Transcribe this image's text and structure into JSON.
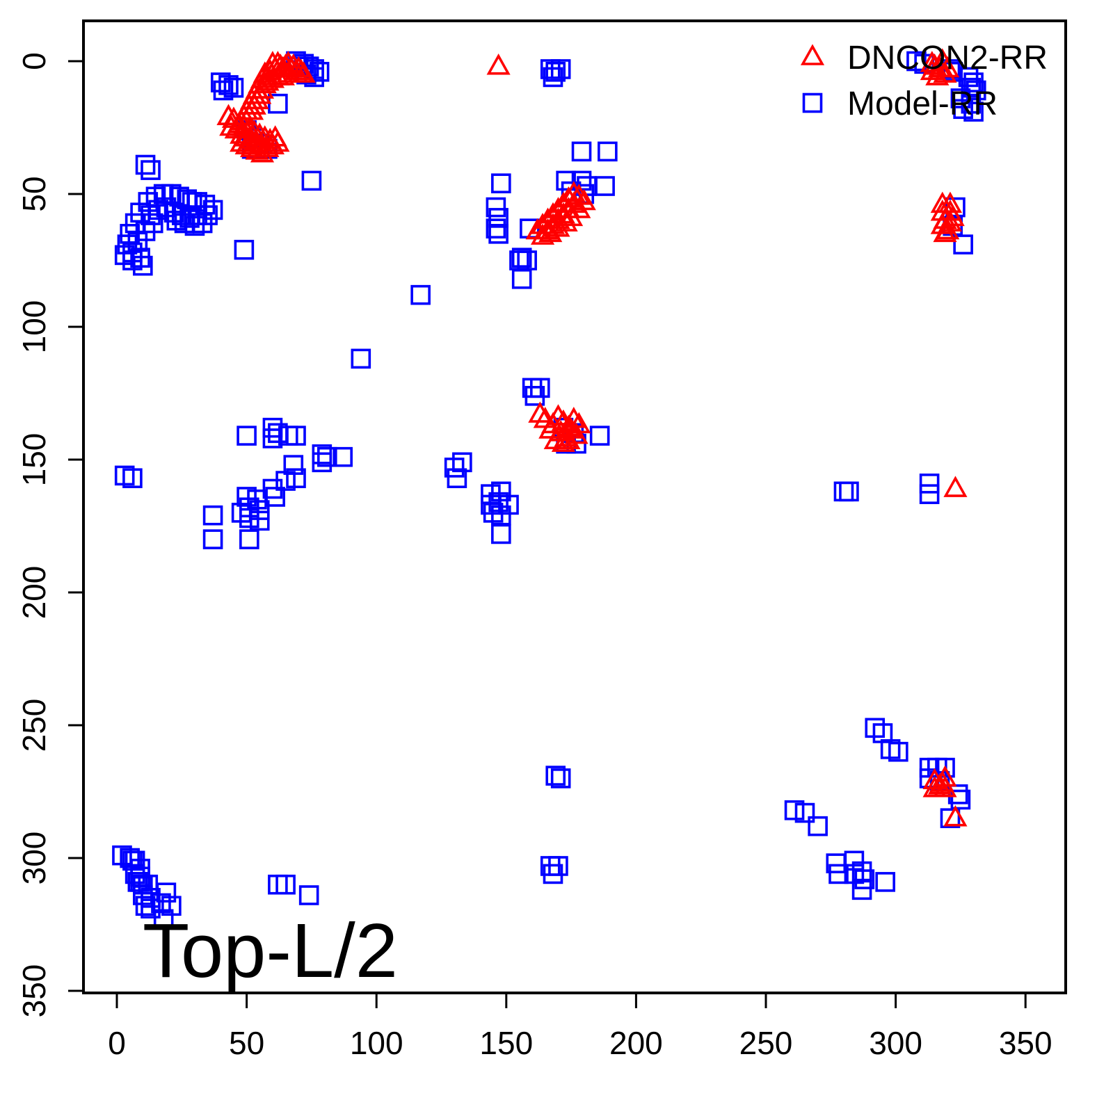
{
  "chart_data": {
    "type": "scatter",
    "annotation": "Top-L/2",
    "grid": false,
    "x_axis": {
      "ticks": [
        0,
        50,
        100,
        150,
        200,
        250,
        300,
        350
      ],
      "range": [
        -14,
        366
      ]
    },
    "y_axis": {
      "ticks": [
        0,
        50,
        100,
        150,
        200,
        250,
        300,
        350
      ],
      "range": [
        -15,
        364
      ],
      "reversed": true
    },
    "legend": {
      "position": "top-right",
      "items": [
        {
          "label": "DNCON2-RR",
          "marker": "triangle",
          "color": "#FF0000"
        },
        {
          "label": "Model-RR",
          "marker": "square",
          "color": "#0000FF"
        }
      ]
    },
    "series": [
      {
        "name": "DNCON2-RR",
        "marker": "triangle",
        "color": "#FF0000",
        "points": [
          [
            60,
            1
          ],
          [
            62,
            1
          ],
          [
            63,
            2
          ],
          [
            65,
            2
          ],
          [
            66,
            1
          ],
          [
            67,
            3
          ],
          [
            68,
            2
          ],
          [
            69,
            4
          ],
          [
            64,
            3
          ],
          [
            61,
            3
          ],
          [
            59,
            4
          ],
          [
            58,
            6
          ],
          [
            57,
            5
          ],
          [
            56,
            7
          ],
          [
            71,
            4
          ],
          [
            72,
            5
          ],
          [
            70,
            3
          ],
          [
            66,
            5
          ],
          [
            64,
            6
          ],
          [
            62,
            6
          ],
          [
            60,
            7
          ],
          [
            55,
            9
          ],
          [
            54,
            11
          ],
          [
            53,
            13
          ],
          [
            52,
            15
          ],
          [
            51,
            17
          ],
          [
            50,
            19
          ],
          [
            56,
            11
          ],
          [
            55,
            13
          ],
          [
            54,
            15
          ],
          [
            53,
            17
          ],
          [
            52,
            19
          ],
          [
            57,
            9
          ],
          [
            58,
            8
          ],
          [
            49,
            21
          ],
          [
            48,
            23
          ],
          [
            45,
            22
          ],
          [
            47,
            24
          ],
          [
            49,
            25
          ],
          [
            51,
            26
          ],
          [
            53,
            27
          ],
          [
            55,
            28
          ],
          [
            57,
            29
          ],
          [
            59,
            30
          ],
          [
            61,
            29
          ],
          [
            46,
            26
          ],
          [
            48,
            28
          ],
          [
            50,
            29
          ],
          [
            52,
            30
          ],
          [
            54,
            31
          ],
          [
            56,
            32
          ],
          [
            58,
            33
          ],
          [
            50,
            32
          ],
          [
            52,
            33
          ],
          [
            54,
            34
          ],
          [
            56,
            35
          ],
          [
            48,
            31
          ],
          [
            44,
            25
          ],
          [
            43,
            21
          ],
          [
            60,
            32
          ],
          [
            62,
            31
          ],
          [
            147,
            2
          ],
          [
            162,
            64
          ],
          [
            164,
            62
          ],
          [
            166,
            60
          ],
          [
            168,
            58
          ],
          [
            170,
            56
          ],
          [
            172,
            54
          ],
          [
            174,
            52
          ],
          [
            176,
            50
          ],
          [
            178,
            51
          ],
          [
            180,
            53
          ],
          [
            170,
            60
          ],
          [
            172,
            58
          ],
          [
            174,
            56
          ],
          [
            176,
            54
          ],
          [
            178,
            56
          ],
          [
            168,
            62
          ],
          [
            166,
            64
          ],
          [
            170,
            63
          ],
          [
            173,
            61
          ],
          [
            175,
            59
          ],
          [
            164,
            66
          ],
          [
            167,
            65
          ],
          [
            163,
            133
          ],
          [
            165,
            135
          ],
          [
            168,
            137
          ],
          [
            170,
            134
          ],
          [
            172,
            136
          ],
          [
            174,
            138
          ],
          [
            176,
            135
          ],
          [
            178,
            137
          ],
          [
            171,
            140
          ],
          [
            173,
            142
          ],
          [
            175,
            139
          ],
          [
            177,
            141
          ],
          [
            169,
            143
          ],
          [
            172,
            144
          ],
          [
            167,
            139
          ],
          [
            174,
            143
          ],
          [
            318,
            54
          ],
          [
            321,
            54
          ],
          [
            318,
            57
          ],
          [
            321,
            57
          ],
          [
            319,
            60
          ],
          [
            321,
            61
          ],
          [
            318,
            62
          ],
          [
            320,
            64
          ],
          [
            319,
            65
          ],
          [
            322,
            59
          ],
          [
            315,
            271
          ],
          [
            319,
            270
          ],
          [
            317,
            273
          ],
          [
            315,
            274
          ],
          [
            319,
            274
          ],
          [
            318,
            272
          ],
          [
            323,
            285
          ],
          [
            323,
            161
          ],
          [
            314,
            1
          ],
          [
            318,
            0
          ],
          [
            317,
            3
          ],
          [
            314,
            4
          ],
          [
            320,
            3
          ],
          [
            316,
            6
          ],
          [
            319,
            5
          ],
          [
            315,
            2
          ]
        ]
      },
      {
        "name": "Model-RR",
        "marker": "square",
        "color": "#0000FF",
        "points": [
          [
            69,
            0
          ],
          [
            72,
            1
          ],
          [
            74,
            2
          ],
          [
            76,
            3
          ],
          [
            73,
            5
          ],
          [
            70,
            2
          ],
          [
            76,
            6
          ],
          [
            78,
            4
          ],
          [
            40,
            8
          ],
          [
            43,
            9
          ],
          [
            41,
            11
          ],
          [
            45,
            10
          ],
          [
            62,
            16
          ],
          [
            58,
            33
          ],
          [
            50,
            26
          ],
          [
            53,
            29
          ],
          [
            55,
            31
          ],
          [
            52,
            33
          ],
          [
            75,
            45
          ],
          [
            49,
            71
          ],
          [
            11,
            39
          ],
          [
            13,
            41
          ],
          [
            15,
            51
          ],
          [
            18,
            50
          ],
          [
            21,
            50
          ],
          [
            24,
            51
          ],
          [
            27,
            52
          ],
          [
            29,
            53
          ],
          [
            31,
            53
          ],
          [
            34,
            54
          ],
          [
            37,
            56
          ],
          [
            12,
            53
          ],
          [
            9,
            57
          ],
          [
            7,
            61
          ],
          [
            5,
            65
          ],
          [
            4,
            69
          ],
          [
            3,
            73
          ],
          [
            6,
            75
          ],
          [
            10,
            77
          ],
          [
            13,
            58
          ],
          [
            16,
            56
          ],
          [
            19,
            55
          ],
          [
            22,
            57
          ],
          [
            25,
            58
          ],
          [
            28,
            59
          ],
          [
            31,
            58
          ],
          [
            35,
            58
          ],
          [
            33,
            61
          ],
          [
            30,
            62
          ],
          [
            26,
            61
          ],
          [
            23,
            60
          ],
          [
            14,
            61
          ],
          [
            11,
            64
          ],
          [
            8,
            68
          ],
          [
            6,
            72
          ],
          [
            9,
            74
          ],
          [
            3,
            156
          ],
          [
            6,
            157
          ],
          [
            50,
            141
          ],
          [
            60,
            138
          ],
          [
            62,
            140
          ],
          [
            60,
            142
          ],
          [
            66,
            141
          ],
          [
            69,
            141
          ],
          [
            79,
            148
          ],
          [
            81,
            149
          ],
          [
            79,
            151
          ],
          [
            87,
            149
          ],
          [
            68,
            152
          ],
          [
            69,
            157
          ],
          [
            65,
            158
          ],
          [
            60,
            161
          ],
          [
            61,
            164
          ],
          [
            50,
            164
          ],
          [
            54,
            165
          ],
          [
            51,
            168
          ],
          [
            55,
            169
          ],
          [
            51,
            172
          ],
          [
            48,
            170
          ],
          [
            55,
            173
          ],
          [
            37,
            171
          ],
          [
            37,
            180
          ],
          [
            51,
            180
          ],
          [
            117,
            88
          ],
          [
            94,
            112
          ],
          [
            167,
            3
          ],
          [
            169,
            4
          ],
          [
            168,
            6
          ],
          [
            171,
            3
          ],
          [
            179,
            34
          ],
          [
            189,
            34
          ],
          [
            188,
            47
          ],
          [
            173,
            45
          ],
          [
            179,
            45
          ],
          [
            181,
            47
          ],
          [
            175,
            49
          ],
          [
            180,
            50
          ],
          [
            148,
            46
          ],
          [
            146,
            55
          ],
          [
            147,
            59
          ],
          [
            146,
            63
          ],
          [
            147,
            65
          ],
          [
            159,
            63
          ],
          [
            156,
            74
          ],
          [
            158,
            75
          ],
          [
            155,
            75
          ],
          [
            156,
            82
          ],
          [
            160,
            123
          ],
          [
            163,
            123
          ],
          [
            161,
            126
          ],
          [
            172,
            138
          ],
          [
            176,
            140
          ],
          [
            173,
            144
          ],
          [
            177,
            144
          ],
          [
            186,
            141
          ],
          [
            130,
            153
          ],
          [
            133,
            151
          ],
          [
            131,
            157
          ],
          [
            144,
            163
          ],
          [
            148,
            162
          ],
          [
            144,
            167
          ],
          [
            147,
            166
          ],
          [
            145,
            170
          ],
          [
            148,
            171
          ],
          [
            151,
            167
          ],
          [
            148,
            178
          ],
          [
            280,
            162
          ],
          [
            282,
            162
          ],
          [
            313,
            159
          ],
          [
            313,
            163
          ],
          [
            323,
            55
          ],
          [
            322,
            62
          ],
          [
            326,
            69
          ],
          [
            308,
            0
          ],
          [
            311,
            1
          ],
          [
            321,
            3
          ],
          [
            322,
            4
          ],
          [
            328,
            6
          ],
          [
            330,
            8
          ],
          [
            329,
            10
          ],
          [
            331,
            11
          ],
          [
            325,
            14
          ],
          [
            329,
            16
          ],
          [
            326,
            18
          ],
          [
            330,
            19
          ],
          [
            292,
            251
          ],
          [
            295,
            253
          ],
          [
            298,
            259
          ],
          [
            301,
            260
          ],
          [
            313,
            266
          ],
          [
            316,
            266
          ],
          [
            319,
            266
          ],
          [
            313,
            270
          ],
          [
            317,
            271
          ],
          [
            324,
            276
          ],
          [
            325,
            278
          ],
          [
            321,
            285
          ],
          [
            261,
            282
          ],
          [
            265,
            283
          ],
          [
            270,
            288
          ],
          [
            277,
            302
          ],
          [
            284,
            301
          ],
          [
            278,
            306
          ],
          [
            284,
            306
          ],
          [
            287,
            305
          ],
          [
            288,
            308
          ],
          [
            287,
            312
          ],
          [
            296,
            309
          ],
          [
            2,
            299
          ],
          [
            5,
            300
          ],
          [
            6,
            301
          ],
          [
            7,
            301
          ],
          [
            9,
            304
          ],
          [
            7,
            306
          ],
          [
            9,
            307
          ],
          [
            8,
            309
          ],
          [
            10,
            310
          ],
          [
            9,
            309
          ],
          [
            12,
            310
          ],
          [
            10,
            314
          ],
          [
            13,
            315
          ],
          [
            11,
            318
          ],
          [
            13,
            319
          ],
          [
            19,
            313
          ],
          [
            17,
            317
          ],
          [
            21,
            318
          ],
          [
            18,
            323
          ],
          [
            62,
            310
          ],
          [
            65,
            310
          ],
          [
            74,
            314
          ],
          [
            169,
            269
          ],
          [
            171,
            270
          ],
          [
            167,
            303
          ],
          [
            170,
            303
          ],
          [
            168,
            306
          ]
        ]
      }
    ]
  }
}
